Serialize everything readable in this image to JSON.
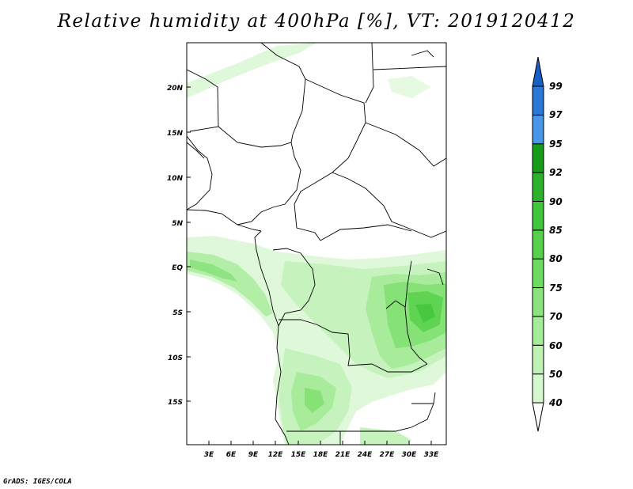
{
  "title": "Relative humidity at 400hPa [%], VT: 2019120412",
  "footer": "GrADS: IGES/COLA",
  "map": {
    "lat_labels": [
      "20N",
      "15N",
      "10N",
      "5N",
      "EQ",
      "5S",
      "10S",
      "15S"
    ],
    "lon_labels": [
      "3E",
      "6E",
      "9E",
      "12E",
      "15E",
      "18E",
      "21E",
      "24E",
      "27E",
      "30E",
      "33E"
    ]
  },
  "colorbar": {
    "levels": [
      "40",
      "50",
      "60",
      "70",
      "75",
      "80",
      "85",
      "90",
      "92",
      "95",
      "97",
      "99"
    ],
    "colors": [
      "#e9fbe6",
      "#d4f7cd",
      "#bdf2b3",
      "#a4ec98",
      "#8ae37d",
      "#6fda62",
      "#56cf4b",
      "#3fc43a",
      "#2db02b",
      "#169c18",
      "#4a96e6",
      "#2a78d8",
      "#175fc4"
    ]
  }
}
